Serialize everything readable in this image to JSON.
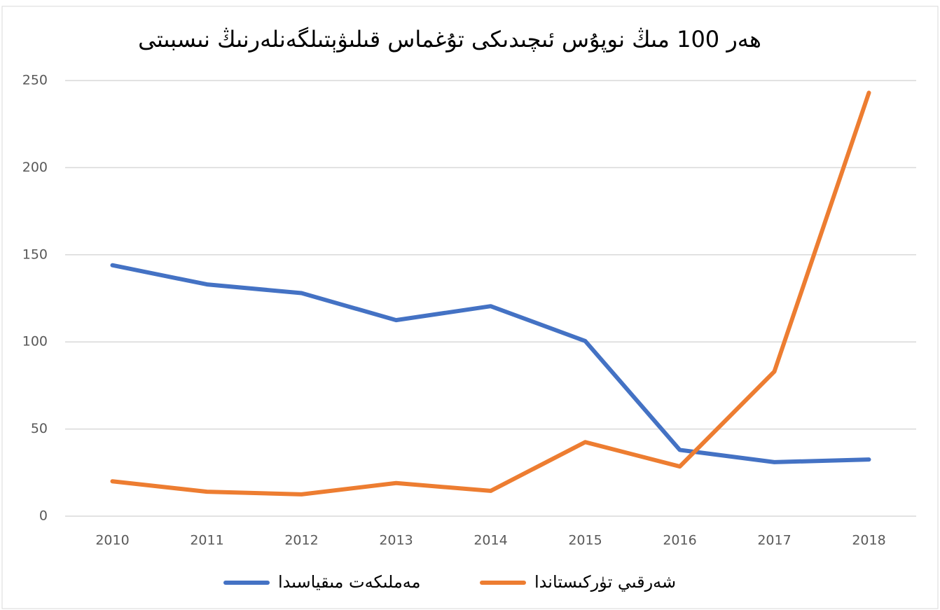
{
  "chart_data": {
    "type": "line",
    "title": "ھەر 100 مىڭ نوپۇس ئىچىدىكى تۇغماس قىلىۋېتىلگەنلەرنىڭ نىسبىتى",
    "categories": [
      "2010",
      "2011",
      "2012",
      "2013",
      "2014",
      "2015",
      "2016",
      "2017",
      "2018"
    ],
    "series": [
      {
        "name": "مەملىكەت مىقياسىدا",
        "color": "#4472c4",
        "values": [
          144,
          133,
          128,
          112.5,
          120.5,
          100.5,
          38,
          31,
          32.5
        ]
      },
      {
        "name": "شەرقىي تۈركىستاندا",
        "color": "#ed7d31",
        "values": [
          20,
          14,
          12.5,
          19,
          14.5,
          42.5,
          28.5,
          83,
          243
        ]
      }
    ],
    "ylim": [
      0,
      250
    ],
    "yticks": [
      0,
      50,
      100,
      150,
      200,
      250
    ],
    "grid": true,
    "legend": "bottom"
  }
}
